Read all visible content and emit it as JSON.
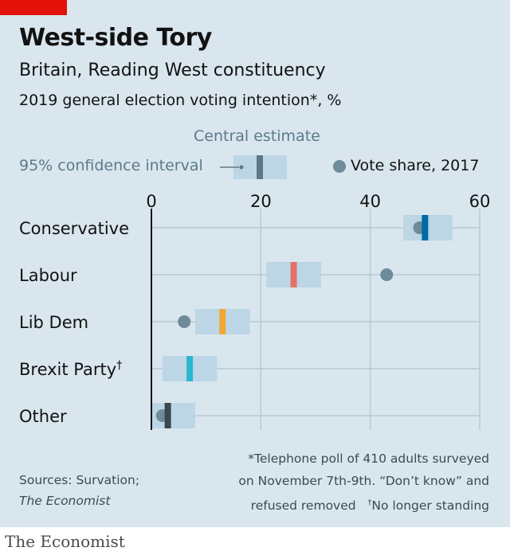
{
  "header": {
    "title": "West-side Tory",
    "subtitle": "Britain, Reading West constituency",
    "subtitle2": "2019 general election voting intention*, %"
  },
  "legend": {
    "central_estimate": "Central estimate",
    "confidence_interval": "95% confidence interval",
    "vote_share": "Vote share, 2017"
  },
  "chart_data": {
    "type": "dot-interval",
    "title": "West-side Tory",
    "subtitle": "Britain, Reading West constituency",
    "xlim": [
      0,
      60
    ],
    "xticks": [
      0,
      20,
      40,
      60
    ],
    "categories": [
      "Conservative",
      "Labour",
      "Lib Dem",
      "Brexit Party",
      "Other"
    ],
    "category_marks": [
      "",
      "",
      "",
      "†",
      ""
    ],
    "central": [
      50,
      26,
      13,
      7,
      3
    ],
    "ci_low": [
      46,
      21,
      8,
      2,
      0
    ],
    "ci_high": [
      55,
      31,
      18,
      12,
      8
    ],
    "vote_share_2017": [
      49,
      43,
      6,
      null,
      2
    ],
    "colors": [
      "#006ba2",
      "#e3716a",
      "#f0a830",
      "#2bb7cf",
      "#3c464e"
    ],
    "ci_color": "#bcd6e6",
    "dot_color": "#6f8a98",
    "grid": true
  },
  "footer": {
    "sources_line1": "Sources: Survation;",
    "sources_line2": "The Economist",
    "footnote_line1": "*Telephone poll of 410 adults surveyed",
    "footnote_line2": "on November 7th-9th. “Don’t know” and",
    "footnote_line3": "refused removed",
    "footnote_line3_mark": "†",
    "footnote_line3_note": "No longer standing",
    "brand": "The Economist"
  }
}
